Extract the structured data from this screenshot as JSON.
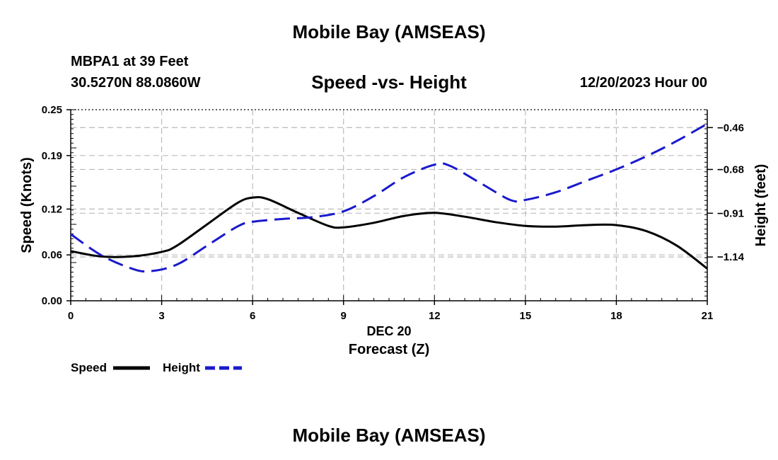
{
  "page": {
    "title": "Mobile Bay (AMSEAS)",
    "bottom_title": "Mobile Bay (AMSEAS)",
    "station": "MBPA1 at 39 Feet",
    "coords": "30.5270N  88.0860W",
    "datetime": "12/20/2023 Hour 00"
  },
  "colors": {
    "speed": "#000000",
    "height": "#1a1acc",
    "grid": "#bbbbbb"
  },
  "chart_data": {
    "type": "line",
    "title": "Speed -vs- Height",
    "xlabel": "Forecast (Z)",
    "xdate": "DEC 20",
    "ylabel": "Speed (Knots)",
    "y2label": "Height (feet)",
    "xlim": [
      0,
      21
    ],
    "ylim": [
      0,
      0.25
    ],
    "y2lim": [
      -1.37,
      -0.366
    ],
    "xticks": [
      0,
      3,
      6,
      9,
      12,
      15,
      18,
      21
    ],
    "xtick_labels": [
      "0",
      "3",
      "6",
      "9",
      "12",
      "15",
      "18",
      "21"
    ],
    "yticks": [
      0.0,
      0.06,
      0.12,
      0.19,
      0.25
    ],
    "ytick_labels": [
      "0.00",
      "0.06",
      "0.12",
      "0.19",
      "0.25"
    ],
    "y2ticks": [
      -1.14,
      -0.91,
      -0.68,
      -0.46
    ],
    "y2tick_labels": [
      "−1.14",
      "−0.91",
      "−0.68",
      "−0.46"
    ],
    "grid": true,
    "legend_position": "bottom-left",
    "series": [
      {
        "name": "Speed",
        "axis": "left",
        "style": "solid",
        "x": [
          0,
          1,
          2,
          3,
          3.5,
          4.5,
          5.5,
          6,
          6.5,
          7.5,
          8.5,
          9,
          10,
          11,
          12,
          13,
          14,
          15,
          16,
          17,
          18,
          19,
          20,
          21
        ],
        "values": [
          0.065,
          0.058,
          0.058,
          0.064,
          0.072,
          0.1,
          0.128,
          0.135,
          0.133,
          0.115,
          0.098,
          0.096,
          0.102,
          0.111,
          0.115,
          0.11,
          0.103,
          0.098,
          0.097,
          0.099,
          0.099,
          0.091,
          0.072,
          0.042
        ]
      },
      {
        "name": "Height",
        "axis": "right",
        "style": "dashed",
        "x": [
          0,
          1,
          2,
          2.6,
          3.5,
          4.5,
          5.5,
          6,
          7,
          8,
          9,
          10,
          11,
          12,
          12.5,
          13.5,
          14.5,
          15,
          16,
          17,
          18,
          19,
          20,
          21
        ],
        "values": [
          -1.02,
          -1.13,
          -1.2,
          -1.215,
          -1.18,
          -1.08,
          -0.98,
          -0.955,
          -0.94,
          -0.93,
          -0.9,
          -0.82,
          -0.72,
          -0.655,
          -0.66,
          -0.75,
          -0.84,
          -0.84,
          -0.8,
          -0.74,
          -0.68,
          -0.61,
          -0.53,
          -0.44
        ]
      }
    ]
  }
}
